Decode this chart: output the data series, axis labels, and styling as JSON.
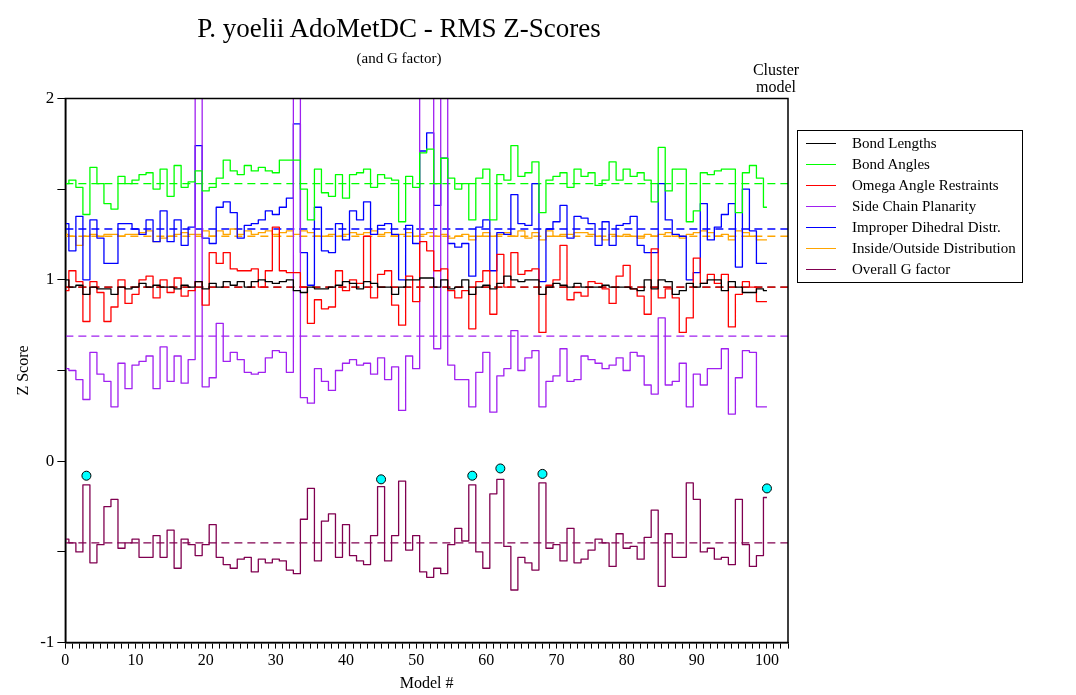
{
  "chart_data": {
    "type": "step",
    "title": "P. yoelii AdoMetDC - RMS Z-Scores",
    "subtitle": "(and G factor)",
    "xlabel": "Model #",
    "ylabel": "Z Score",
    "annotations": [
      "Cluster model"
    ],
    "legend": "right",
    "grid": false,
    "marker": "none",
    "line_style": "solid",
    "xlim": [
      0,
      103
    ],
    "ylim": [
      -1,
      2
    ],
    "xticks": [
      0,
      {
        "value": 1,
        "label": null
      },
      {
        "value": 2,
        "label": null
      },
      {
        "value": 3,
        "label": null
      },
      {
        "value": 4,
        "label": null
      },
      {
        "value": 5,
        "label": null
      },
      {
        "value": 6,
        "label": null
      },
      {
        "value": 7,
        "label": null
      },
      {
        "value": 8,
        "label": null
      },
      {
        "value": 9,
        "label": null
      },
      10,
      {
        "value": 11,
        "label": null
      },
      {
        "value": 12,
        "label": null
      },
      {
        "value": 13,
        "label": null
      },
      {
        "value": 14,
        "label": null
      },
      {
        "value": 15,
        "label": null
      },
      {
        "value": 16,
        "label": null
      },
      {
        "value": 17,
        "label": null
      },
      {
        "value": 18,
        "label": null
      },
      {
        "value": 19,
        "label": null
      },
      20,
      {
        "value": 21,
        "label": null
      },
      {
        "value": 22,
        "label": null
      },
      {
        "value": 23,
        "label": null
      },
      {
        "value": 24,
        "label": null
      },
      {
        "value": 25,
        "label": null
      },
      {
        "value": 26,
        "label": null
      },
      {
        "value": 27,
        "label": null
      },
      {
        "value": 28,
        "label": null
      },
      {
        "value": 29,
        "label": null
      },
      30,
      {
        "value": 31,
        "label": null
      },
      {
        "value": 32,
        "label": null
      },
      {
        "value": 33,
        "label": null
      },
      {
        "value": 34,
        "label": null
      },
      {
        "value": 35,
        "label": null
      },
      {
        "value": 36,
        "label": null
      },
      {
        "value": 37,
        "label": null
      },
      {
        "value": 38,
        "label": null
      },
      {
        "value": 39,
        "label": null
      },
      40,
      {
        "value": 41,
        "label": null
      },
      {
        "value": 42,
        "label": null
      },
      {
        "value": 43,
        "label": null
      },
      {
        "value": 44,
        "label": null
      },
      {
        "value": 45,
        "label": null
      },
      {
        "value": 46,
        "label": null
      },
      {
        "value": 47,
        "label": null
      },
      {
        "value": 48,
        "label": null
      },
      {
        "value": 49,
        "label": null
      },
      50,
      {
        "value": 51,
        "label": null
      },
      {
        "value": 52,
        "label": null
      },
      {
        "value": 53,
        "label": null
      },
      {
        "value": 54,
        "label": null
      },
      {
        "value": 55,
        "label": null
      },
      {
        "value": 56,
        "label": null
      },
      {
        "value": 57,
        "label": null
      },
      {
        "value": 58,
        "label": null
      },
      {
        "value": 59,
        "label": null
      },
      60,
      {
        "value": 61,
        "label": null
      },
      {
        "value": 62,
        "label": null
      },
      {
        "value": 63,
        "label": null
      },
      {
        "value": 64,
        "label": null
      },
      {
        "value": 65,
        "label": null
      },
      {
        "value": 66,
        "label": null
      },
      {
        "value": 67,
        "label": null
      },
      {
        "value": 68,
        "label": null
      },
      {
        "value": 69,
        "label": null
      },
      70,
      {
        "value": 71,
        "label": null
      },
      {
        "value": 72,
        "label": null
      },
      {
        "value": 73,
        "label": null
      },
      {
        "value": 74,
        "label": null
      },
      {
        "value": 75,
        "label": null
      },
      {
        "value": 76,
        "label": null
      },
      {
        "value": 77,
        "label": null
      },
      {
        "value": 78,
        "label": null
      },
      {
        "value": 79,
        "label": null
      },
      80,
      {
        "value": 81,
        "label": null
      },
      {
        "value": 82,
        "label": null
      },
      {
        "value": 83,
        "label": null
      },
      {
        "value": 84,
        "label": null
      },
      {
        "value": 85,
        "label": null
      },
      {
        "value": 86,
        "label": null
      },
      {
        "value": 87,
        "label": null
      },
      {
        "value": 88,
        "label": null
      },
      {
        "value": 89,
        "label": null
      },
      90,
      {
        "value": 91,
        "label": null
      },
      {
        "value": 92,
        "label": null
      },
      {
        "value": 93,
        "label": null
      },
      {
        "value": 94,
        "label": null
      },
      {
        "value": 95,
        "label": null
      },
      {
        "value": 96,
        "label": null
      },
      {
        "value": 97,
        "label": null
      },
      {
        "value": 98,
        "label": null
      },
      {
        "value": 99,
        "label": null
      },
      100,
      {
        "value": 101,
        "label": null
      },
      {
        "value": 102,
        "label": null
      },
      {
        "value": 103,
        "label": null
      }
    ],
    "yticks": [
      -1,
      {
        "value": -0.5,
        "label": null
      },
      0,
      {
        "value": 0.5,
        "label": null
      },
      1,
      {
        "value": 1.5,
        "label": null
      },
      2
    ],
    "x": [
      0,
      1,
      2,
      3,
      4,
      5,
      6,
      7,
      8,
      9,
      10,
      11,
      12,
      13,
      14,
      15,
      16,
      17,
      18,
      19,
      20,
      21,
      22,
      23,
      24,
      25,
      26,
      27,
      28,
      29,
      30,
      31,
      32,
      33,
      34,
      35,
      36,
      37,
      38,
      39,
      40,
      41,
      42,
      43,
      44,
      45,
      46,
      47,
      48,
      49,
      50,
      51,
      52,
      53,
      54,
      55,
      56,
      57,
      58,
      59,
      60,
      61,
      62,
      63,
      64,
      65,
      66,
      67,
      68,
      69,
      70,
      71,
      72,
      73,
      74,
      75,
      76,
      77,
      78,
      79,
      80,
      81,
      82,
      83,
      84,
      85,
      86,
      87,
      88,
      89,
      90,
      91,
      92,
      93,
      94,
      95,
      96,
      97,
      98,
      99,
      100
    ],
    "series": [
      {
        "name": "Bond Lengths",
        "color": "#000000",
        "values": [
          1.0,
          0.96,
          0.97,
          0.92,
          0.96,
          0.95,
          0.95,
          0.92,
          0.96,
          0.95,
          0.96,
          0.98,
          0.96,
          0.97,
          0.96,
          0.96,
          0.95,
          0.97,
          0.96,
          0.99,
          0.95,
          0.98,
          0.96,
          0.99,
          0.97,
          0.99,
          0.96,
          0.99,
          1.0,
          0.99,
          0.98,
          0.99,
          1.0,
          0.94,
          0.93,
          0.96,
          0.95,
          0.95,
          0.96,
          0.97,
          0.99,
          0.98,
          0.95,
          0.99,
          0.98,
          0.96,
          0.96,
          0.92,
          0.96,
          1.0,
          1.0,
          1.01,
          1.01,
          0.96,
          1.0,
          0.95,
          0.96,
          1.0,
          0.92,
          0.96,
          0.97,
          0.95,
          0.98,
          1.02,
          1.0,
          0.99,
          1.0,
          1.0,
          0.92,
          0.96,
          0.98,
          0.97,
          0.96,
          0.98,
          0.96,
          0.96,
          0.96,
          0.97,
          0.96,
          0.96,
          0.96,
          0.95,
          0.94,
          1.0,
          0.95,
          1.0,
          0.99,
          0.92,
          0.94,
          0.98,
          0.96,
          0.98,
          1.0,
          1.0,
          0.94,
          0.99,
          0.96,
          0.93,
          0.93,
          0.95,
          0.94
        ]
      },
      {
        "name": "Bond Angles",
        "color": "#00ff00",
        "values": [
          1.53,
          1.55,
          1.51,
          1.36,
          1.62,
          1.53,
          1.42,
          1.39,
          1.57,
          1.53,
          1.55,
          1.58,
          1.59,
          1.5,
          1.61,
          1.46,
          1.63,
          1.51,
          1.54,
          1.6,
          1.49,
          1.51,
          1.56,
          1.66,
          1.6,
          1.58,
          1.63,
          1.6,
          1.62,
          1.6,
          1.59,
          1.66,
          1.66,
          1.66,
          1.5,
          1.33,
          1.61,
          1.48,
          1.46,
          1.58,
          1.45,
          1.58,
          1.59,
          1.61,
          1.51,
          1.58,
          1.56,
          1.55,
          1.32,
          1.57,
          1.51,
          1.7,
          1.72,
          1.53,
          1.67,
          1.56,
          1.5,
          1.53,
          1.33,
          1.56,
          1.61,
          1.33,
          1.58,
          1.55,
          1.74,
          1.57,
          1.59,
          1.65,
          1.37,
          1.55,
          1.57,
          1.59,
          1.51,
          1.61,
          1.57,
          1.59,
          1.52,
          1.55,
          1.65,
          1.55,
          1.61,
          1.57,
          1.59,
          1.55,
          1.43,
          1.73,
          1.49,
          1.61,
          1.61,
          1.32,
          1.38,
          1.59,
          1.58,
          1.6,
          1.61,
          1.61,
          1.37,
          1.59,
          1.63,
          1.56,
          1.4
        ]
      },
      {
        "name": "Omega Angle Restraints",
        "color": "#ff0000",
        "values": [
          0.94,
          1.05,
          0.99,
          0.77,
          0.99,
          0.93,
          0.77,
          0.85,
          1.0,
          0.87,
          0.92,
          1.0,
          1.02,
          0.9,
          1.0,
          0.93,
          1.01,
          0.91,
          0.94,
          0.99,
          0.86,
          1.15,
          1.09,
          1.15,
          1.06,
          1.05,
          1.05,
          1.06,
          0.96,
          1.05,
          1.29,
          1.05,
          1.04,
          1.04,
          0.96,
          0.76,
          0.89,
          0.84,
          0.85,
          1.05,
          0.94,
          1.0,
          0.98,
          1.24,
          0.9,
          1.03,
          1.05,
          0.86,
          0.75,
          1.02,
          0.88,
          1.21,
          1.16,
          1.05,
          1.06,
          0.94,
          0.9,
          0.94,
          0.73,
          0.99,
          1.05,
          0.81,
          1.14,
          0.96,
          1.15,
          1.03,
          1.05,
          1.06,
          0.71,
          0.97,
          1.0,
          1.19,
          0.89,
          0.93,
          0.91,
          0.99,
          0.98,
          0.95,
          0.87,
          1.02,
          1.08,
          0.95,
          0.91,
          0.81,
          1.17,
          0.9,
          0.95,
          0.9,
          0.71,
          0.79,
          1.12,
          0.98,
          1.03,
          0.98,
          1.03,
          0.74,
          0.92,
          0.99,
          0.96,
          0.88,
          0.88
        ]
      },
      {
        "name": "Side Chain Planarity",
        "color": "#a020f0",
        "values": [
          0.51,
          0.5,
          0.45,
          0.34,
          0.6,
          0.48,
          0.44,
          0.3,
          0.54,
          0.4,
          0.53,
          0.55,
          0.58,
          0.4,
          0.63,
          0.44,
          0.58,
          0.43,
          0.56,
          2,
          0.41,
          0.46,
          0.76,
          0.55,
          0.6,
          0.56,
          0.49,
          0.48,
          0.49,
          0.57,
          0.61,
          0.6,
          0.49,
          2,
          0.35,
          0.32,
          0.51,
          0.44,
          0.39,
          0.5,
          0.54,
          0.56,
          0.53,
          0.54,
          0.48,
          0.57,
          0.45,
          0.52,
          0.28,
          0.58,
          0.51,
          2,
          2,
          0.62,
          2,
          0.53,
          0.45,
          0.45,
          0.3,
          0.49,
          0.6,
          0.27,
          0.47,
          0.51,
          0.72,
          0.5,
          0.57,
          0.61,
          0.3,
          0.44,
          0.47,
          0.62,
          0.44,
          0.45,
          0.58,
          0.56,
          0.54,
          0.51,
          0.53,
          0.57,
          0.5,
          0.6,
          0.58,
          0.42,
          0.37,
          0.79,
          0.42,
          0.44,
          0.54,
          0.3,
          0.48,
          0.42,
          0.51,
          0.51,
          0.62,
          0.26,
          0.46,
          0.61,
          0.6,
          0.3,
          0.3
        ]
      },
      {
        "name": "Improper Dihedral Distr.",
        "color": "#0000ff",
        "values": [
          1.31,
          1.16,
          1.35,
          1.0,
          1.33,
          1.23,
          1.09,
          1.09,
          1.31,
          1.31,
          1.28,
          1.25,
          1.33,
          1.21,
          1.38,
          1.21,
          1.33,
          1.19,
          1.29,
          1.74,
          1.23,
          1.2,
          1.4,
          1.43,
          1.37,
          1.23,
          1.3,
          1.31,
          1.33,
          1.38,
          1.36,
          1.4,
          1.45,
          1.86,
          1.15,
          0.97,
          1.4,
          1.16,
          1.15,
          1.31,
          1.22,
          1.38,
          1.33,
          1.43,
          1.25,
          1.3,
          1.31,
          1.25,
          1.0,
          1.3,
          1.2,
          1.71,
          1.81,
          1.41,
          1.67,
          1.2,
          1.18,
          1.2,
          1.02,
          1.29,
          1.33,
          1.05,
          1.26,
          1.25,
          1.47,
          1.31,
          1.3,
          1.53,
          0.99,
          1.28,
          1.32,
          1.41,
          1.23,
          1.35,
          1.34,
          1.31,
          1.19,
          1.32,
          1.19,
          1.3,
          1.31,
          1.35,
          1.19,
          1.15,
          1.15,
          1.53,
          1.33,
          1.25,
          1.24,
          1.0,
          1.04,
          1.42,
          1.22,
          1.29,
          1.36,
          1.42,
          1.07,
          1.5,
          1.27,
          1.09,
          1.09
        ]
      },
      {
        "name": "Inside/Outside Distribution",
        "color": "#ffa500",
        "values": [
          1.25,
          1.24,
          1.19,
          1.24,
          1.25,
          1.24,
          1.25,
          1.25,
          1.24,
          1.25,
          1.25,
          1.26,
          1.27,
          1.21,
          1.23,
          1.24,
          1.25,
          1.26,
          1.25,
          1.25,
          1.27,
          1.24,
          1.27,
          1.25,
          1.28,
          1.25,
          1.27,
          1.25,
          1.26,
          1.27,
          1.25,
          1.26,
          1.27,
          1.25,
          1.27,
          1.26,
          1.24,
          1.24,
          1.25,
          1.24,
          1.25,
          1.26,
          1.25,
          1.26,
          1.27,
          1.25,
          1.26,
          1.24,
          1.25,
          1.26,
          1.24,
          1.25,
          1.26,
          1.24,
          1.25,
          1.23,
          1.24,
          1.25,
          1.22,
          1.24,
          1.26,
          1.24,
          1.25,
          1.26,
          1.24,
          1.27,
          1.23,
          1.26,
          1.22,
          1.27,
          1.24,
          1.25,
          1.25,
          1.26,
          1.26,
          1.25,
          1.24,
          1.22,
          1.25,
          1.24,
          1.25,
          1.24,
          1.23,
          1.25,
          1.24,
          1.25,
          1.26,
          1.24,
          1.23,
          1.25,
          1.26,
          1.27,
          1.26,
          1.24,
          1.25,
          1.22,
          1.27,
          1.26,
          1.24,
          1.22,
          1.22
        ]
      },
      {
        "name": "Overall G factor",
        "color": "#800050",
        "values": [
          -0.43,
          -0.45,
          -0.5,
          -0.13,
          -0.56,
          -0.46,
          -0.25,
          -0.21,
          -0.48,
          -0.45,
          -0.43,
          -0.53,
          -0.53,
          -0.41,
          -0.53,
          -0.38,
          -0.59,
          -0.43,
          -0.46,
          -0.52,
          -0.46,
          -0.35,
          -0.53,
          -0.57,
          -0.59,
          -0.54,
          -0.53,
          -0.61,
          -0.54,
          -0.56,
          -0.54,
          -0.55,
          -0.6,
          -0.62,
          -0.32,
          -0.15,
          -0.55,
          -0.33,
          -0.29,
          -0.53,
          -0.35,
          -0.52,
          -0.55,
          -0.57,
          -0.41,
          -0.14,
          -0.55,
          -0.41,
          -0.11,
          -0.49,
          -0.41,
          -0.61,
          -0.64,
          -0.59,
          -0.62,
          -0.46,
          -0.37,
          -0.44,
          -0.13,
          -0.5,
          -0.59,
          -0.18,
          -0.1,
          -0.47,
          -0.71,
          -0.53,
          -0.56,
          -0.6,
          -0.12,
          -0.48,
          -0.46,
          -0.55,
          -0.37,
          -0.56,
          -0.54,
          -0.49,
          -0.43,
          -0.45,
          -0.58,
          -0.4,
          -0.48,
          -0.47,
          -0.54,
          -0.42,
          -0.27,
          -0.69,
          -0.4,
          -0.53,
          -0.53,
          -0.12,
          -0.21,
          -0.5,
          -0.48,
          -0.54,
          -0.53,
          -0.57,
          -0.21,
          -0.46,
          -0.58,
          -0.52,
          -0.2
        ]
      },
      {
        "type": "scatter",
        "marker": "circle",
        "color": "#00ffff",
        "x": [
          3,
          45,
          58,
          62,
          68,
          100
        ],
        "values": [
          -0.08,
          -0.1,
          -0.08,
          -0.04,
          -0.07,
          -0.15
        ]
      }
    ],
    "ref_lines": [
      {
        "axis": "y",
        "value": 1.53,
        "color": "#00ff00",
        "line_style": "dashed"
      },
      {
        "axis": "y",
        "value": 1.28,
        "color": "#0000ff",
        "line_style": "dashed"
      },
      {
        "axis": "y",
        "value": 1.24,
        "color": "#ffa500",
        "line_style": "dashed"
      },
      {
        "axis": "y",
        "value": 0.96,
        "color": "#000000",
        "line_style": "dashed"
      },
      {
        "axis": "y",
        "value": 0.96,
        "color": "#ff0000",
        "line_style": "dashed"
      },
      {
        "axis": "y",
        "value": 0.69,
        "color": "#a020f0",
        "line_style": "dashed"
      },
      {
        "axis": "y",
        "value": -0.45,
        "color": "#800050",
        "line_style": "dashed"
      }
    ]
  }
}
